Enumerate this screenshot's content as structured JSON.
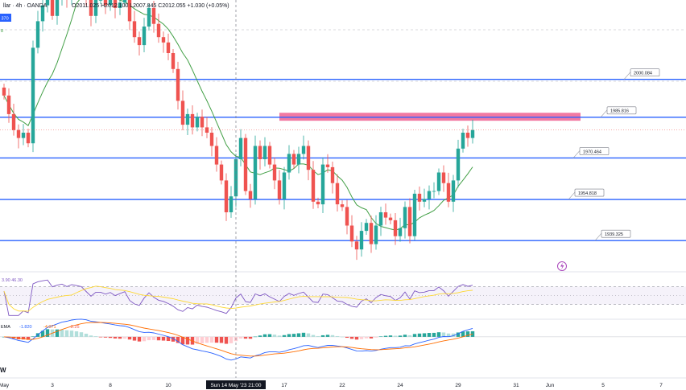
{
  "header": {
    "symbol_text": "llar · 4h · OANDA",
    "ohlc_text": "O2011.025  H2012.100  L2007.845  C2012.055  +1.030 (+0.05%)",
    "left_value_1": "370",
    "left_value_2": "8"
  },
  "rsi": {
    "values_text": "3.90  46.30"
  },
  "macd": {
    "label": "EMA",
    "v1": "-1.820",
    "v2": "-4.071",
    "v3": "-2.25"
  },
  "brand": "W",
  "colors": {
    "bull": "#26a69a",
    "bear": "#ef5350",
    "level": "#2962ff",
    "resistance_zone": "#f06292",
    "sma": "#43a047",
    "rsi": "#7e57c2",
    "rsi_ma": "#fdd835",
    "macd": "#2962ff",
    "signal": "#ff6d00"
  },
  "chart_data": {
    "type": "candlestick",
    "title": "",
    "timeframe": "4h",
    "source": "OANDA",
    "y_range": [
      1930,
      2030
    ],
    "levels": [
      2000.084,
      1985.816,
      1970.464,
      1954.818,
      1939.325
    ],
    "resistance_zone": [
      1984.5,
      1987.5
    ],
    "crosshair_label": "Sun 14 May '23  21:00",
    "x_ticks": [
      {
        "label": "May",
        "i": 0
      },
      {
        "label": "3",
        "i": 10
      },
      {
        "label": "8",
        "i": 22
      },
      {
        "label": "10",
        "i": 34
      },
      {
        "label": "17",
        "i": 58
      },
      {
        "label": "22",
        "i": 70
      },
      {
        "label": "24",
        "i": 82
      },
      {
        "label": "29",
        "i": 94
      },
      {
        "label": "31",
        "i": 106
      },
      {
        "label": "Jun",
        "i": 113
      },
      {
        "label": "5",
        "i": 124
      },
      {
        "label": "7",
        "i": 136
      }
    ],
    "price_close": [
      1994,
      1987,
      1981,
      1978,
      1980,
      1976,
      2012,
      2022,
      2028,
      2033,
      2024,
      2030,
      2034,
      2031,
      2037,
      2036,
      2035,
      2030,
      2024,
      2030,
      2030,
      2028,
      2030,
      2027,
      2029,
      2031,
      2022,
      2016,
      2013,
      2020,
      2027,
      2021,
      2016,
      2014,
      2010,
      2004,
      1992,
      1983,
      1987,
      1982,
      1986,
      1982,
      1980,
      1975,
      1968,
      1962,
      1950,
      1956,
      1970,
      1978,
      1958,
      1955,
      1975,
      1970,
      1975,
      1968,
      1962,
      1955,
      1965,
      1972,
      1968,
      1972,
      1975,
      1966,
      1954,
      1953,
      1968,
      1967,
      1961,
      1953,
      1952,
      1945,
      1939,
      1936,
      1943,
      1946,
      1938,
      1945,
      1950,
      1948,
      1947,
      1941,
      1944,
      1952,
      1941,
      1957,
      1954,
      1955,
      1958,
      1958,
      1965,
      1961,
      1954,
      1962,
      1974,
      1980,
      1978,
      1981
    ],
    "price_ohlc_note": "Open of each bar = previous close",
    "sma_note": "Green moving average overlay",
    "rsi_range": [
      0,
      100
    ],
    "rsi_levels": [
      70,
      30
    ],
    "macd_range": [
      -26,
      10
    ]
  }
}
